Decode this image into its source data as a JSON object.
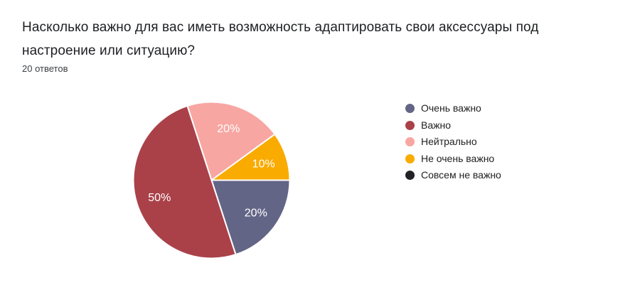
{
  "header": {
    "title": "Насколько важно для вас иметь возможность адаптировать свои аксессуары под настроение или ситуацию?",
    "title_lines": [
      "Насколько важно для вас иметь возможность адаптировать свои аксессуары под",
      "настроение или ситуацию?"
    ],
    "responses_count": "20 ответов"
  },
  "chart_data": {
    "type": "pie",
    "title": "Насколько важно для вас иметь возможность адаптировать свои аксессуары под настроение или ситуацию?",
    "subtitle": "20 ответов",
    "total_responses": 20,
    "start_angle_deg": 90,
    "direction": "clockwise",
    "legend_position": "right",
    "slice_label_color": "#ffffff",
    "slice_border_color": "#ffffff",
    "slices": [
      {
        "label": "Очень важно",
        "value": 20,
        "percent_label": "20%",
        "color": "#636587"
      },
      {
        "label": "Важно",
        "value": 50,
        "percent_label": "50%",
        "color": "#AA4149"
      },
      {
        "label": "Нейтрально",
        "value": 20,
        "percent_label": "20%",
        "color": "#F8A6A2"
      },
      {
        "label": "Не очень важно",
        "value": 10,
        "percent_label": "10%",
        "color": "#F9AB00"
      },
      {
        "label": "Совсем не важно",
        "value": 0,
        "percent_label": "0%",
        "color": "#212126"
      }
    ]
  }
}
